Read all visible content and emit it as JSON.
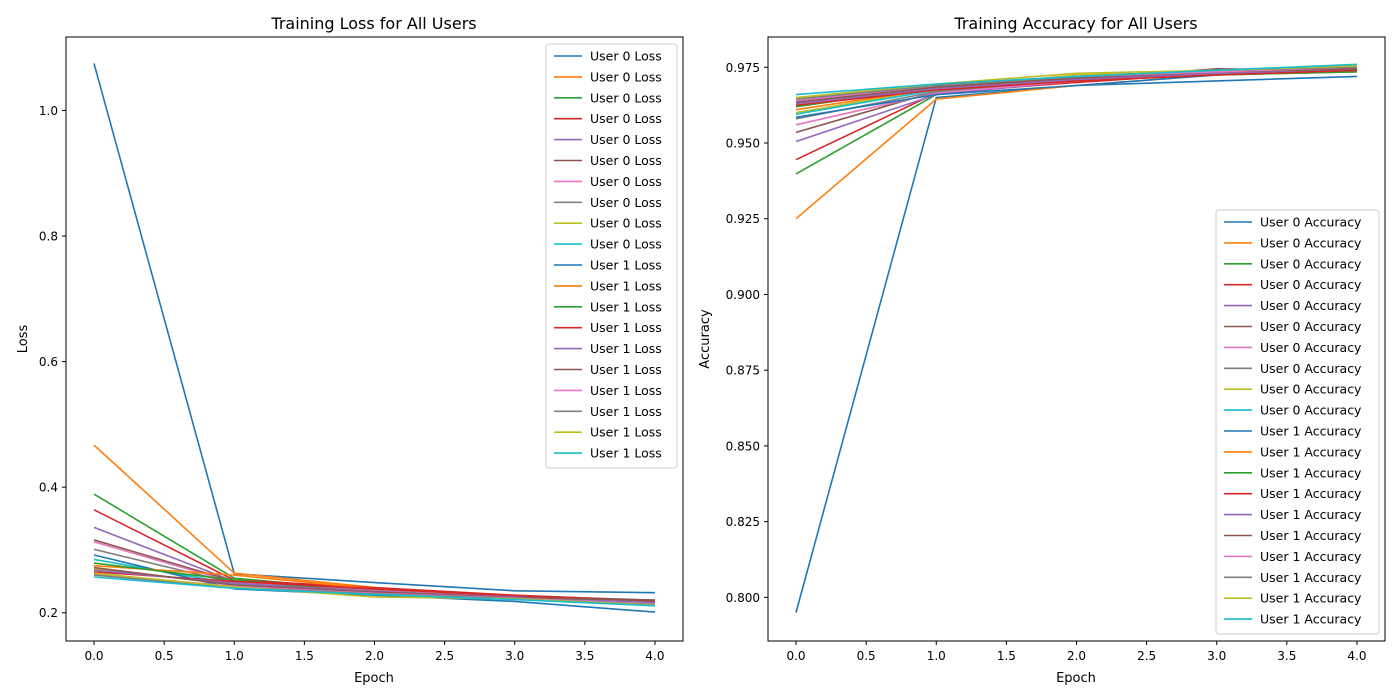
{
  "chart_data": [
    {
      "type": "line",
      "title": "Training Loss for All Users",
      "xlabel": "Epoch",
      "ylabel": "Loss",
      "xlim": [
        -0.2,
        4.2
      ],
      "ylim": [
        0.155,
        1.117
      ],
      "xticks": [
        0.0,
        0.5,
        1.0,
        1.5,
        2.0,
        2.5,
        3.0,
        3.5,
        4.0
      ],
      "xtick_labels": [
        "0.0",
        "0.5",
        "1.0",
        "1.5",
        "2.0",
        "2.5",
        "3.0",
        "3.5",
        "4.0"
      ],
      "yticks": [
        0.2,
        0.4,
        0.6,
        0.8,
        1.0
      ],
      "ytick_labels": [
        "0.2",
        "0.4",
        "0.6",
        "0.8",
        "1.0"
      ],
      "grid": false,
      "legend_position": "top-right",
      "x": [
        0,
        1,
        2,
        3,
        4
      ],
      "series": [
        {
          "name": "User 0 Loss",
          "color": "#1f77b4",
          "values": [
            1.075,
            0.262,
            0.248,
            0.235,
            0.232
          ]
        },
        {
          "name": "User 0 Loss",
          "color": "#ff7f0e",
          "values": [
            0.467,
            0.263,
            0.24,
            0.225,
            0.218
          ]
        },
        {
          "name": "User 0 Loss",
          "color": "#2ca02c",
          "values": [
            0.389,
            0.255,
            0.235,
            0.225,
            0.22
          ]
        },
        {
          "name": "User 0 Loss",
          "color": "#d62728",
          "values": [
            0.364,
            0.252,
            0.24,
            0.228,
            0.219
          ]
        },
        {
          "name": "User 0 Loss",
          "color": "#9467bd",
          "values": [
            0.336,
            0.25,
            0.236,
            0.226,
            0.217
          ]
        },
        {
          "name": "User 0 Loss",
          "color": "#8c564b",
          "values": [
            0.316,
            0.25,
            0.237,
            0.227,
            0.22
          ]
        },
        {
          "name": "User 0 Loss",
          "color": "#e377c2",
          "values": [
            0.313,
            0.248,
            0.235,
            0.225,
            0.216
          ]
        },
        {
          "name": "User 0 Loss",
          "color": "#7f7f7f",
          "values": [
            0.301,
            0.247,
            0.233,
            0.224,
            0.215
          ]
        },
        {
          "name": "User 0 Loss",
          "color": "#bcbd22",
          "values": [
            0.27,
            0.245,
            0.232,
            0.223,
            0.214
          ]
        },
        {
          "name": "User 0 Loss",
          "color": "#17becf",
          "values": [
            0.285,
            0.246,
            0.234,
            0.224,
            0.215
          ]
        },
        {
          "name": "User 1 Loss",
          "color": "#1f77b4",
          "values": [
            0.292,
            0.238,
            0.228,
            0.218,
            0.201
          ]
        },
        {
          "name": "User 1 Loss",
          "color": "#ff7f0e",
          "values": [
            0.275,
            0.26,
            0.238,
            0.226,
            0.218
          ]
        },
        {
          "name": "User 1 Loss",
          "color": "#2ca02c",
          "values": [
            0.279,
            0.252,
            0.232,
            0.224,
            0.217
          ]
        },
        {
          "name": "User 1 Loss",
          "color": "#d62728",
          "values": [
            0.265,
            0.25,
            0.238,
            0.227,
            0.219
          ]
        },
        {
          "name": "User 1 Loss",
          "color": "#9467bd",
          "values": [
            0.268,
            0.247,
            0.234,
            0.225,
            0.216
          ]
        },
        {
          "name": "User 1 Loss",
          "color": "#8c564b",
          "values": [
            0.272,
            0.244,
            0.233,
            0.224,
            0.22
          ]
        },
        {
          "name": "User 1 Loss",
          "color": "#e377c2",
          "values": [
            0.262,
            0.242,
            0.231,
            0.223,
            0.214
          ]
        },
        {
          "name": "User 1 Loss",
          "color": "#7f7f7f",
          "values": [
            0.26,
            0.24,
            0.23,
            0.222,
            0.213
          ]
        },
        {
          "name": "User 1 Loss",
          "color": "#bcbd22",
          "values": [
            0.263,
            0.241,
            0.225,
            0.222,
            0.212
          ]
        },
        {
          "name": "User 1 Loss",
          "color": "#17becf",
          "values": [
            0.257,
            0.239,
            0.229,
            0.221,
            0.211
          ]
        }
      ]
    },
    {
      "type": "line",
      "title": "Training Accuracy for All Users",
      "xlabel": "Epoch",
      "ylabel": "Accuracy",
      "xlim": [
        -0.2,
        4.2
      ],
      "ylim": [
        0.7856,
        0.985
      ],
      "xticks": [
        0.0,
        0.5,
        1.0,
        1.5,
        2.0,
        2.5,
        3.0,
        3.5,
        4.0
      ],
      "xtick_labels": [
        "0.0",
        "0.5",
        "1.0",
        "1.5",
        "2.0",
        "2.5",
        "3.0",
        "3.5",
        "4.0"
      ],
      "yticks": [
        0.8,
        0.825,
        0.85,
        0.875,
        0.9,
        0.925,
        0.95,
        0.975
      ],
      "ytick_labels": [
        "0.800",
        "0.825",
        "0.850",
        "0.875",
        "0.900",
        "0.925",
        "0.950",
        "0.975"
      ],
      "grid": false,
      "legend_position": "lower-right",
      "x": [
        0,
        1,
        2,
        3,
        4
      ],
      "series": [
        {
          "name": "User 0 Accuracy",
          "color": "#1f77b4",
          "values": [
            0.795,
            0.965,
            0.969,
            0.9705,
            0.972
          ]
        },
        {
          "name": "User 0 Accuracy",
          "color": "#ff7f0e",
          "values": [
            0.925,
            0.9645,
            0.969,
            0.9725,
            0.9735
          ]
        },
        {
          "name": "User 0 Accuracy",
          "color": "#2ca02c",
          "values": [
            0.9398,
            0.966,
            0.971,
            0.9725,
            0.9735
          ]
        },
        {
          "name": "User 0 Accuracy",
          "color": "#d62728",
          "values": [
            0.9445,
            0.9665,
            0.97,
            0.973,
            0.974
          ]
        },
        {
          "name": "User 0 Accuracy",
          "color": "#9467bd",
          "values": [
            0.9505,
            0.966,
            0.9705,
            0.9735,
            0.974
          ]
        },
        {
          "name": "User 0 Accuracy",
          "color": "#8c564b",
          "values": [
            0.9535,
            0.967,
            0.971,
            0.9745,
            0.974
          ]
        },
        {
          "name": "User 0 Accuracy",
          "color": "#e377c2",
          "values": [
            0.956,
            0.9665,
            0.9705,
            0.973,
            0.974
          ]
        },
        {
          "name": "User 0 Accuracy",
          "color": "#7f7f7f",
          "values": [
            0.958,
            0.967,
            0.971,
            0.9735,
            0.9745
          ]
        },
        {
          "name": "User 0 Accuracy",
          "color": "#bcbd22",
          "values": [
            0.96,
            0.968,
            0.9725,
            0.9735,
            0.9745
          ]
        },
        {
          "name": "User 0 Accuracy",
          "color": "#17becf",
          "values": [
            0.9595,
            0.9675,
            0.9715,
            0.9735,
            0.975
          ]
        },
        {
          "name": "User 1 Accuracy",
          "color": "#1f77b4",
          "values": [
            0.9585,
            0.966,
            0.969,
            0.9725,
            0.9755
          ]
        },
        {
          "name": "User 1 Accuracy",
          "color": "#ff7f0e",
          "values": [
            0.961,
            0.968,
            0.9705,
            0.973,
            0.9745
          ]
        },
        {
          "name": "User 1 Accuracy",
          "color": "#2ca02c",
          "values": [
            0.962,
            0.9685,
            0.971,
            0.9735,
            0.974
          ]
        },
        {
          "name": "User 1 Accuracy",
          "color": "#d62728",
          "values": [
            0.9625,
            0.9675,
            0.9705,
            0.9725,
            0.974
          ]
        },
        {
          "name": "User 1 Accuracy",
          "color": "#9467bd",
          "values": [
            0.963,
            0.968,
            0.971,
            0.973,
            0.9745
          ]
        },
        {
          "name": "User 1 Accuracy",
          "color": "#8c564b",
          "values": [
            0.9635,
            0.9685,
            0.9715,
            0.9735,
            0.9745
          ]
        },
        {
          "name": "User 1 Accuracy",
          "color": "#e377c2",
          "values": [
            0.964,
            0.969,
            0.972,
            0.9735,
            0.975
          ]
        },
        {
          "name": "User 1 Accuracy",
          "color": "#7f7f7f",
          "values": [
            0.9645,
            0.969,
            0.972,
            0.974,
            0.975
          ]
        },
        {
          "name": "User 1 Accuracy",
          "color": "#bcbd22",
          "values": [
            0.965,
            0.9695,
            0.973,
            0.974,
            0.9755
          ]
        },
        {
          "name": "User 1 Accuracy",
          "color": "#17becf",
          "values": [
            0.966,
            0.9695,
            0.972,
            0.974,
            0.976
          ]
        }
      ]
    }
  ]
}
